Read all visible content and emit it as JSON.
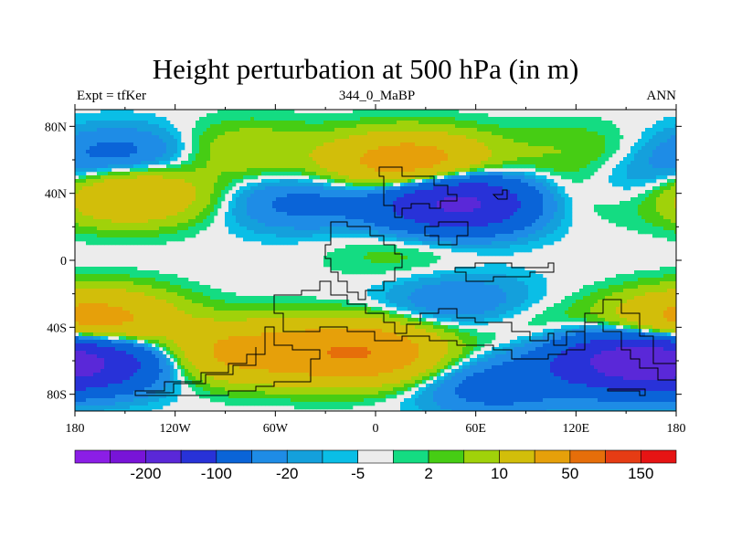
{
  "title": "Height perturbation at 500 hPa (in m)",
  "left_string": "Expt = tfKer",
  "center_string": "344_0_MaBP",
  "right_string": "ANN",
  "lon_ticks": [
    "180",
    "120W",
    "60W",
    "0",
    "60E",
    "120E",
    "180"
  ],
  "lat_ticks": [
    "80N",
    "40N",
    "0",
    "40S",
    "80S"
  ],
  "colorbar": {
    "colors": [
      "#8b1ee6",
      "#7814d8",
      "#5a28d8",
      "#2832d8",
      "#0a64d8",
      "#1e8ce6",
      "#14a0dc",
      "#0abee6",
      "#ececec",
      "#14dc82",
      "#46cd14",
      "#a0d20a",
      "#d2be0a",
      "#e6a00a",
      "#e66e0a",
      "#e63c14",
      "#e61414"
    ],
    "labels": [
      "-200",
      "-100",
      "-20",
      "-5",
      "2",
      "10",
      "50",
      "150"
    ]
  },
  "chart_data": {
    "type": "heatmap",
    "projection": "cylindrical equidistant",
    "lon_range": [
      -180,
      180
    ],
    "lat_range": [
      -90,
      90
    ],
    "contour_levels": [
      -200,
      -150,
      -100,
      -50,
      -20,
      -10,
      -5,
      -2,
      2,
      5,
      10,
      20,
      50,
      100,
      150,
      200
    ],
    "fields": [
      {
        "lon": -80,
        "lat": 65,
        "value": 20
      },
      {
        "lon": 20,
        "lat": 58,
        "value": 80
      },
      {
        "lon": 120,
        "lat": 65,
        "value": 10
      },
      {
        "lon": -150,
        "lat": 40,
        "value": 60
      },
      {
        "lon": 105,
        "lat": 38,
        "value": 15
      },
      {
        "lon": -150,
        "lat": 62,
        "value": -30
      },
      {
        "lon": -45,
        "lat": 35,
        "value": -25
      },
      {
        "lon": 50,
        "lat": 35,
        "value": -120
      },
      {
        "lon": 170,
        "lat": 45,
        "value": -20
      },
      {
        "lon": 15,
        "lat": 5,
        "value": 8
      },
      {
        "lon": -165,
        "lat": -35,
        "value": 50
      },
      {
        "lon": -80,
        "lat": -55,
        "value": 60
      },
      {
        "lon": -10,
        "lat": -55,
        "value": 100
      },
      {
        "lon": 95,
        "lat": -40,
        "value": 10
      },
      {
        "lon": 180,
        "lat": -40,
        "value": 30
      },
      {
        "lon": 50,
        "lat": -25,
        "value": -20
      },
      {
        "lon": -170,
        "lat": -60,
        "value": -80
      },
      {
        "lon": 150,
        "lat": -60,
        "value": -110
      },
      {
        "lon": 70,
        "lat": -75,
        "value": -30
      }
    ]
  }
}
